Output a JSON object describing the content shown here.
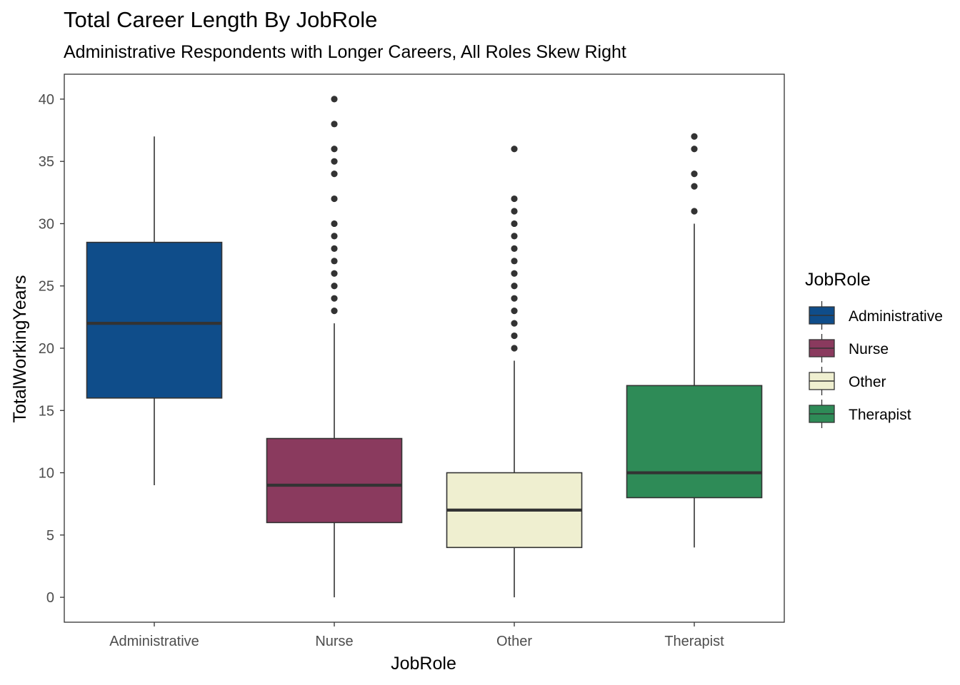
{
  "chart_data": {
    "type": "boxplot",
    "title": "Total Career Length By JobRole",
    "subtitle": "Administrative Respondents with Longer Careers, All Roles Skew Right",
    "xlabel": "JobRole",
    "ylabel": "TotalWorkingYears",
    "ylim": [
      -2,
      42
    ],
    "yticks": [
      0,
      5,
      10,
      15,
      20,
      25,
      30,
      35,
      40
    ],
    "ytick_labels": [
      "0",
      "5",
      "10",
      "15",
      "20",
      "25",
      "30",
      "35",
      "40"
    ],
    "grid": false,
    "categories": [
      "Administrative",
      "Nurse",
      "Other",
      "Therapist"
    ],
    "boxes": [
      {
        "category": "Administrative",
        "whisker_low": 9,
        "q1": 16,
        "median": 22,
        "q3": 28.5,
        "whisker_high": 37,
        "outliers": [],
        "color": "#0F4D8A"
      },
      {
        "category": "Nurse",
        "whisker_low": 0,
        "q1": 6,
        "median": 9,
        "q3": 12.75,
        "whisker_high": 22,
        "outliers": [
          23,
          24,
          25,
          26,
          27,
          28,
          29,
          30,
          32,
          34,
          35,
          36,
          38,
          40
        ],
        "color": "#8A3A5E"
      },
      {
        "category": "Other",
        "whisker_low": 0,
        "q1": 4,
        "median": 7,
        "q3": 10,
        "whisker_high": 19,
        "outliers": [
          20,
          21,
          22,
          23,
          24,
          25,
          26,
          27,
          28,
          29,
          30,
          31,
          32,
          36
        ],
        "color": "#EFEFD0"
      },
      {
        "category": "Therapist",
        "whisker_low": 4,
        "q1": 8,
        "median": 10,
        "q3": 17,
        "whisker_high": 30,
        "outliers": [
          31,
          33,
          34,
          36,
          37
        ],
        "color": "#2E8B57"
      }
    ],
    "legend": {
      "title": "JobRole",
      "position": "right",
      "items": [
        "Administrative",
        "Nurse",
        "Other",
        "Therapist"
      ]
    }
  }
}
